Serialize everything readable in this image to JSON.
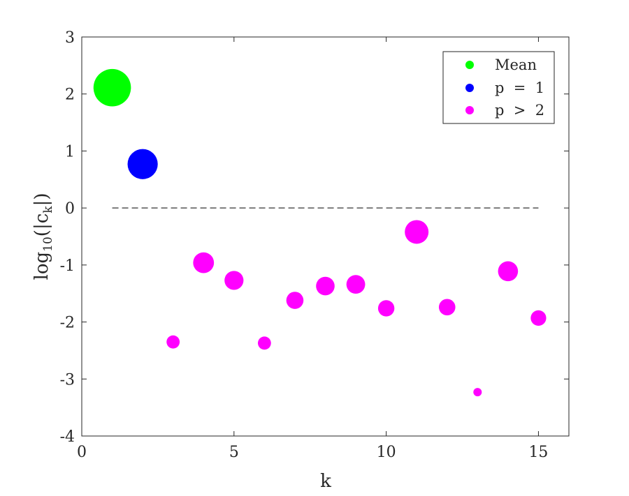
{
  "chart_data": {
    "type": "scatter",
    "xlabel": "k",
    "ylabel": "log10(|ck|)",
    "ylabel_parts": {
      "base": "log",
      "sub1": "10",
      "paren_open": "(|c",
      "sub2": "k",
      "paren_close": "|)"
    },
    "xlim": [
      0,
      16
    ],
    "ylim": [
      -4,
      3
    ],
    "x_ticks": [
      0,
      5,
      10,
      15
    ],
    "x_tick_labels": [
      "0",
      "5",
      "10",
      "15"
    ],
    "y_ticks": [
      -4,
      -3,
      -2,
      -1,
      0,
      1,
      2,
      3
    ],
    "y_tick_labels": [
      "-4",
      "-3",
      "-2",
      "-1",
      "0",
      "1",
      "2",
      "3"
    ],
    "grid": false,
    "legend_position": "top-right",
    "reference_line": {
      "y": 0,
      "x_from": 1,
      "x_to": 15,
      "style": "dashed",
      "color": "#555555"
    },
    "series": [
      {
        "name": "Mean",
        "color": "#00ff00",
        "points": [
          {
            "x": 1,
            "y": 2.11
          }
        ]
      },
      {
        "name": "p  =  1",
        "color": "#0000ff",
        "points": [
          {
            "x": 2,
            "y": 0.77
          }
        ]
      },
      {
        "name": "p  >  2",
        "color": "#ff00ff",
        "points": [
          {
            "x": 3,
            "y": -2.35
          },
          {
            "x": 4,
            "y": -0.96
          },
          {
            "x": 5,
            "y": -1.27
          },
          {
            "x": 6,
            "y": -2.37
          },
          {
            "x": 7,
            "y": -1.62
          },
          {
            "x": 8,
            "y": -1.37
          },
          {
            "x": 9,
            "y": -1.34
          },
          {
            "x": 10,
            "y": -1.76
          },
          {
            "x": 11,
            "y": -0.42
          },
          {
            "x": 12,
            "y": -1.74
          },
          {
            "x": 13,
            "y": -3.23
          },
          {
            "x": 14,
            "y": -1.11
          },
          {
            "x": 15,
            "y": -1.93
          }
        ]
      }
    ]
  }
}
